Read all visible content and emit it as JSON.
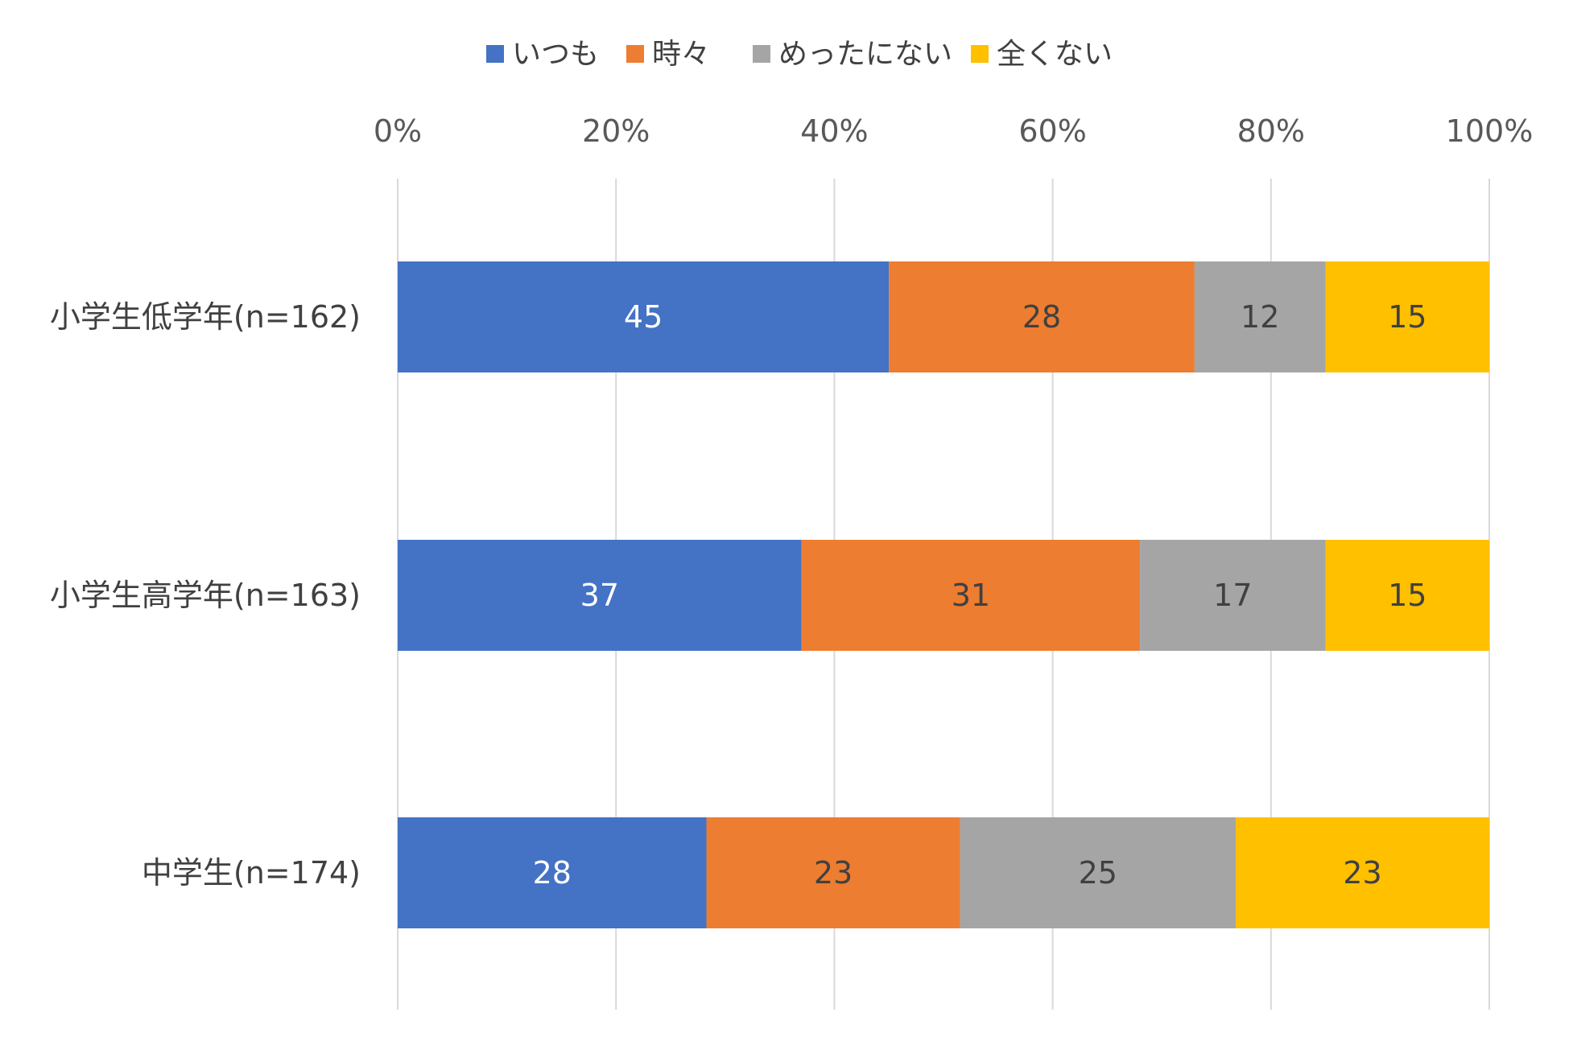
{
  "chart_data": {
    "type": "bar",
    "orientation": "horizontal",
    "stacked": "percent",
    "categories": [
      "小学生低学年(n=162)",
      "小学生高学年(n=163)",
      "中学生(n=174)"
    ],
    "series": [
      {
        "name": "いつも",
        "values": [
          45,
          37,
          28
        ],
        "color": "#4472C4",
        "label_color": "#FFFFFF"
      },
      {
        "name": "時々",
        "values": [
          28,
          31,
          23
        ],
        "color": "#ED7D31",
        "label_color": "#404040"
      },
      {
        "name": "めったにない",
        "values": [
          12,
          17,
          25
        ],
        "color": "#A5A5A5",
        "label_color": "#404040"
      },
      {
        "name": "全くない",
        "values": [
          15,
          15,
          23
        ],
        "color": "#FFC000",
        "label_color": "#404040"
      }
    ],
    "x_ticks": [
      "0%",
      "20%",
      "40%",
      "60%",
      "80%",
      "100%"
    ],
    "xlim": [
      0,
      100
    ],
    "axis_position": "top",
    "grid": true,
    "legend_position": "top",
    "title": "",
    "xlabel": "",
    "ylabel": ""
  }
}
